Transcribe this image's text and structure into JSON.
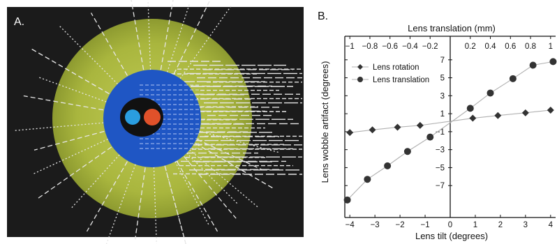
{
  "panel_a": {
    "label": "A.",
    "colors": {
      "background": "#1b1b1b",
      "outer_sphere": "#a6b33c",
      "iris": "#1f56c4",
      "pupil": "#111111",
      "blue_spot": "#2a9de0",
      "red_spot": "#e0512a",
      "rays": "#e6e6e6"
    }
  },
  "panel_b": {
    "label": "B."
  },
  "chart_data": {
    "type": "line",
    "title": "",
    "xlabel": "Lens tilt (degrees)",
    "x2label": "Lens translation (mm)",
    "ylabel": "Lens wobble artifact (degrees)",
    "xlim": [
      -4.2,
      4.2
    ],
    "x2lim": [
      -1.05,
      1.05
    ],
    "ylim": [
      -9,
      9
    ],
    "x_ticks": [
      -4,
      -3,
      -2,
      -1,
      0,
      1,
      2,
      3,
      4
    ],
    "x2_ticks": [
      -1,
      -0.8,
      -0.6,
      -0.4,
      -0.2,
      0.2,
      0.4,
      0.6,
      0.8,
      1
    ],
    "x2_tick_labels": [
      "−1",
      "−0.8",
      "−0.6",
      "−0.4",
      "−0.2",
      "0.2",
      "0.4",
      "0.6",
      "0.8",
      "1"
    ],
    "y_ticks": [
      7,
      5,
      3,
      1,
      -1,
      -3,
      -5,
      -7
    ],
    "y_tick_labels": [
      "7",
      "5",
      "3",
      "1",
      "−1",
      "−3",
      "−5",
      "−7"
    ],
    "x_tick_labels": [
      "−4",
      "−3",
      "−2",
      "−1",
      "0",
      "1",
      "2",
      "3",
      "4"
    ],
    "grid": false,
    "legend_position": "top-left",
    "series": [
      {
        "name": "Lens rotation",
        "marker": "diamond",
        "color": "#333333",
        "x": [
          -4,
          -3.1,
          -2.1,
          -1.2,
          0.9,
          1.9,
          3.0,
          4.0
        ],
        "y": [
          -1.1,
          -0.8,
          -0.5,
          -0.3,
          0.5,
          0.8,
          1.1,
          1.4
        ]
      },
      {
        "name": "Lens translation",
        "marker": "circle",
        "color": "#333333",
        "x": [
          -4.1,
          -3.3,
          -2.5,
          -1.7,
          -0.8,
          0.8,
          1.6,
          2.5,
          3.3,
          4.1
        ],
        "y": [
          -8.6,
          -6.3,
          -4.8,
          -3.2,
          -1.6,
          1.6,
          3.3,
          4.9,
          6.4,
          6.8
        ]
      }
    ]
  }
}
